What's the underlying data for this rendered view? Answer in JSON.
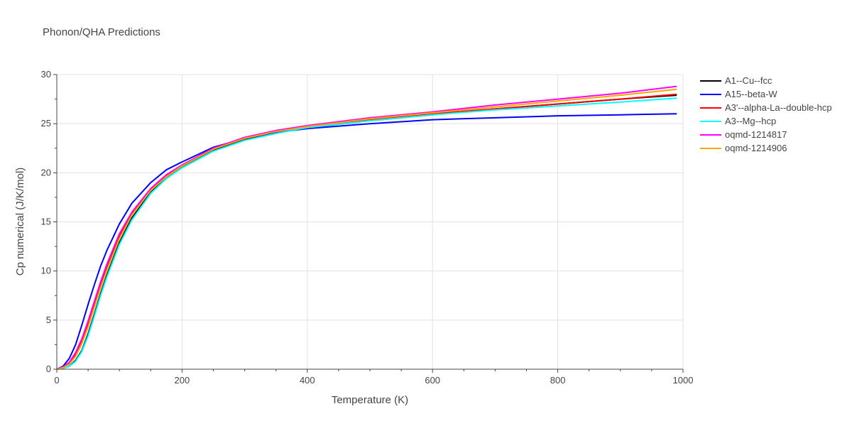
{
  "chart_data": {
    "type": "line",
    "title": "Phonon/QHA Predictions",
    "xlabel": "Temperature (K)",
    "ylabel": "Cp numerical (J/K/mol)",
    "xlim": [
      0,
      1000
    ],
    "ylim": [
      0,
      30
    ],
    "xticks": [
      0,
      200,
      400,
      600,
      800,
      1000
    ],
    "yticks": [
      0,
      5,
      10,
      15,
      20,
      25,
      30
    ],
    "grid": true,
    "legend_position": "right",
    "x": [
      0,
      10,
      20,
      30,
      40,
      50,
      60,
      70,
      80,
      100,
      120,
      150,
      175,
      200,
      250,
      300,
      350,
      400,
      500,
      600,
      700,
      800,
      900,
      990
    ],
    "series": [
      {
        "name": "A1--Cu--fcc",
        "color": "#000000",
        "values": [
          0,
          0.1,
          0.3,
          0.9,
          1.9,
          3.6,
          5.6,
          7.7,
          9.6,
          12.9,
          15.4,
          18.0,
          19.5,
          20.6,
          22.3,
          23.4,
          24.1,
          24.6,
          25.3,
          25.9,
          26.5,
          27.0,
          27.5,
          27.9
        ]
      },
      {
        "name": "A15--beta-W",
        "color": "#0000ff",
        "values": [
          0,
          0.3,
          1.1,
          2.5,
          4.5,
          6.6,
          8.6,
          10.5,
          12.1,
          14.8,
          16.9,
          19.0,
          20.3,
          21.1,
          22.6,
          23.5,
          24.1,
          24.5,
          25.0,
          25.4,
          25.6,
          25.8,
          25.9,
          26.0
        ]
      },
      {
        "name": "A3'--alpha-La--double-hcp",
        "color": "#ff0000",
        "values": [
          0,
          0.2,
          0.6,
          1.5,
          2.9,
          4.7,
          6.7,
          8.7,
          10.5,
          13.6,
          15.9,
          18.3,
          19.7,
          20.7,
          22.4,
          23.5,
          24.2,
          24.7,
          25.4,
          26.0,
          26.5,
          27.0,
          27.5,
          28.0
        ]
      },
      {
        "name": "A3--Mg--hcp",
        "color": "#00ffff",
        "values": [
          0,
          0.1,
          0.3,
          0.8,
          1.8,
          3.4,
          5.4,
          7.5,
          9.4,
          12.7,
          15.2,
          17.9,
          19.4,
          20.5,
          22.2,
          23.3,
          24.0,
          24.6,
          25.3,
          25.9,
          26.4,
          26.8,
          27.2,
          27.6
        ]
      },
      {
        "name": "oqmd-1214817",
        "color": "#ff00ff",
        "values": [
          0,
          0.2,
          0.7,
          1.7,
          3.1,
          4.9,
          6.9,
          8.9,
          10.7,
          13.8,
          16.0,
          18.4,
          19.8,
          20.8,
          22.5,
          23.6,
          24.3,
          24.8,
          25.6,
          26.2,
          26.9,
          27.5,
          28.1,
          28.8
        ]
      },
      {
        "name": "oqmd-1214906",
        "color": "#ffa500",
        "values": [
          0,
          0.15,
          0.5,
          1.3,
          2.6,
          4.3,
          6.3,
          8.3,
          10.1,
          13.3,
          15.7,
          18.2,
          19.6,
          20.7,
          22.4,
          23.5,
          24.2,
          24.7,
          25.5,
          26.1,
          26.7,
          27.3,
          27.9,
          28.5
        ]
      }
    ]
  }
}
